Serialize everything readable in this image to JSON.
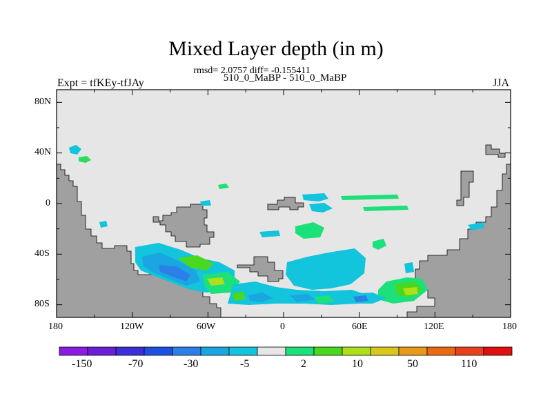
{
  "title": "Mixed Layer depth (in m)",
  "stats": "rmsd= 2.0757 diff= -0.155411",
  "subtitle": "510_0_MaBP - 510_0_MaBP",
  "left_label": "Expt = tfKEy-tfJAy",
  "right_label": "JJA",
  "lat_labels": [
    "80N",
    "40N",
    "0",
    "40S",
    "80S"
  ],
  "lon_labels": [
    "180",
    "120W",
    "60W",
    "0",
    "60E",
    "120E",
    "180"
  ],
  "colorbar": {
    "colors": [
      "#8a1be0",
      "#6a1ed8",
      "#3a2fd8",
      "#1f4fe0",
      "#2d7fe8",
      "#1aa6e0",
      "#12c4dc",
      "#e6e6e6",
      "#1ce07a",
      "#4ad81e",
      "#aee01a",
      "#d8c81a",
      "#e89a1a",
      "#e86a12",
      "#e8401a",
      "#e01010"
    ],
    "labels": [
      "-150",
      "-70",
      "-30",
      "-5",
      "2",
      "10",
      "50",
      "110"
    ]
  },
  "colors": {
    "ocean": "#e6e6e6",
    "land": "#a0a0a0"
  }
}
